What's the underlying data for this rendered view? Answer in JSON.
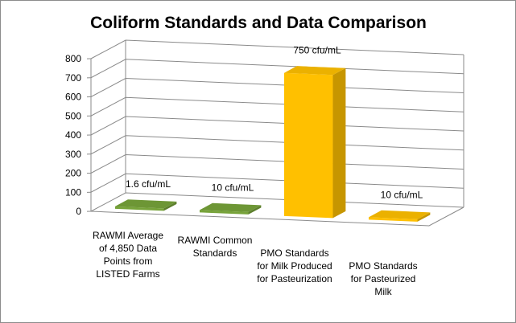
{
  "chart_data": {
    "type": "bar",
    "title": "Coliform Standards and Data Comparison",
    "categories": [
      [
        "RAWMI Average",
        "of 4,850 Data",
        "Points from",
        "LISTED Farms"
      ],
      [
        "RAWMI Common",
        "Standards"
      ],
      [
        "PMO Standards",
        "for Milk Produced",
        "for Pasteurization"
      ],
      [
        "PMO Standards",
        "for Pasteurized",
        "Milk"
      ]
    ],
    "values": [
      1.6,
      10,
      750,
      10
    ],
    "data_labels": [
      "1.6 cfu/mL",
      "10 cfu/mL",
      "750 cfu/mL",
      "10 cfu/mL"
    ],
    "bar_colors": [
      "#77a33a",
      "#77a33a",
      "#ffc000",
      "#ffc000"
    ],
    "ylim": [
      0,
      800
    ],
    "yticks": [
      0,
      100,
      200,
      300,
      400,
      500,
      600,
      700,
      800
    ],
    "grid": true,
    "legend": "none",
    "projection": "3d"
  }
}
